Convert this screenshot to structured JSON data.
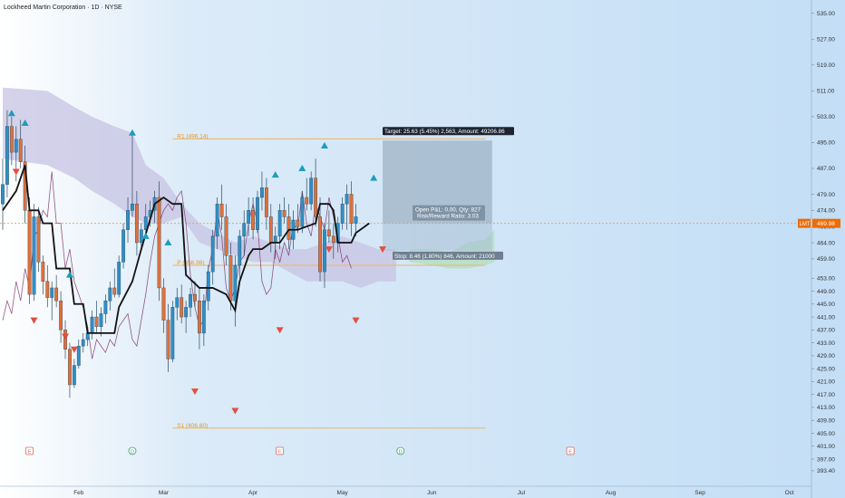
{
  "header": {
    "title": "Lockheed Martin Corporation · 1D · NYSE"
  },
  "chart_data": {
    "type": "candlestick",
    "symbol": "LMT",
    "ylim": [
      390,
      538
    ],
    "y_ticks": [
      "393.40",
      "397.00",
      "401.00",
      "405.00",
      "409.00",
      "413.00",
      "417.00",
      "421.00",
      "425.00",
      "429.00",
      "433.00",
      "437.00",
      "441.00",
      "445.00",
      "449.00",
      "453.00",
      "459.00",
      "464.00",
      "469.00",
      "474.00",
      "479.00",
      "487.00",
      "495.00",
      "503.00",
      "511.00",
      "519.00",
      "527.00",
      "535.00"
    ],
    "x_ticks": [
      {
        "label": "Feb",
        "i": 17
      },
      {
        "label": "Mar",
        "i": 36
      },
      {
        "label": "Apr",
        "i": 56
      },
      {
        "label": "May",
        "i": 76
      },
      {
        "label": "Jun",
        "i": 96
      },
      {
        "label": "Jul",
        "i": 116
      },
      {
        "label": "Aug",
        "i": 136
      },
      {
        "label": "Sep",
        "i": 156
      },
      {
        "label": "Oct",
        "i": 176
      }
    ],
    "candles": [
      {
        "o": 476,
        "h": 490,
        "l": 468,
        "c": 482
      },
      {
        "o": 482,
        "h": 505,
        "l": 478,
        "c": 500
      },
      {
        "o": 500,
        "h": 503,
        "l": 488,
        "c": 492
      },
      {
        "o": 492,
        "h": 500,
        "l": 483,
        "c": 496
      },
      {
        "o": 496,
        "h": 502,
        "l": 487,
        "c": 489
      },
      {
        "o": 489,
        "h": 494,
        "l": 470,
        "c": 474
      },
      {
        "o": 474,
        "h": 478,
        "l": 445,
        "c": 448
      },
      {
        "o": 448,
        "h": 476,
        "l": 446,
        "c": 472
      },
      {
        "o": 472,
        "h": 475,
        "l": 455,
        "c": 458
      },
      {
        "o": 458,
        "h": 460,
        "l": 448,
        "c": 452
      },
      {
        "o": 452,
        "h": 457,
        "l": 444,
        "c": 447
      },
      {
        "o": 447,
        "h": 452,
        "l": 440,
        "c": 450
      },
      {
        "o": 450,
        "h": 454,
        "l": 444,
        "c": 446
      },
      {
        "o": 446,
        "h": 449,
        "l": 433,
        "c": 437
      },
      {
        "o": 437,
        "h": 440,
        "l": 428,
        "c": 431
      },
      {
        "o": 431,
        "h": 433,
        "l": 416,
        "c": 420
      },
      {
        "o": 420,
        "h": 428,
        "l": 419,
        "c": 426
      },
      {
        "o": 426,
        "h": 434,
        "l": 425,
        "c": 432
      },
      {
        "o": 432,
        "h": 436,
        "l": 430,
        "c": 434
      },
      {
        "o": 434,
        "h": 438,
        "l": 432,
        "c": 436
      },
      {
        "o": 436,
        "h": 443,
        "l": 434,
        "c": 441
      },
      {
        "o": 441,
        "h": 446,
        "l": 436,
        "c": 438
      },
      {
        "o": 438,
        "h": 444,
        "l": 435,
        "c": 442
      },
      {
        "o": 442,
        "h": 448,
        "l": 439,
        "c": 446
      },
      {
        "o": 446,
        "h": 452,
        "l": 443,
        "c": 450
      },
      {
        "o": 450,
        "h": 456,
        "l": 447,
        "c": 448
      },
      {
        "o": 448,
        "h": 460,
        "l": 447,
        "c": 458
      },
      {
        "o": 458,
        "h": 470,
        "l": 456,
        "c": 468
      },
      {
        "o": 468,
        "h": 478,
        "l": 464,
        "c": 474
      },
      {
        "o": 474,
        "h": 498,
        "l": 472,
        "c": 476
      },
      {
        "o": 476,
        "h": 480,
        "l": 460,
        "c": 464
      },
      {
        "o": 464,
        "h": 470,
        "l": 462,
        "c": 468
      },
      {
        "o": 468,
        "h": 476,
        "l": 466,
        "c": 472
      },
      {
        "o": 472,
        "h": 477,
        "l": 469,
        "c": 474
      },
      {
        "o": 474,
        "h": 480,
        "l": 470,
        "c": 478
      },
      {
        "o": 478,
        "h": 483,
        "l": 446,
        "c": 450
      },
      {
        "o": 450,
        "h": 453,
        "l": 436,
        "c": 440
      },
      {
        "o": 440,
        "h": 445,
        "l": 424,
        "c": 428
      },
      {
        "o": 428,
        "h": 446,
        "l": 427,
        "c": 444
      },
      {
        "o": 444,
        "h": 450,
        "l": 440,
        "c": 447
      },
      {
        "o": 447,
        "h": 451,
        "l": 439,
        "c": 441
      },
      {
        "o": 441,
        "h": 446,
        "l": 436,
        "c": 444
      },
      {
        "o": 444,
        "h": 450,
        "l": 441,
        "c": 448
      },
      {
        "o": 448,
        "h": 452,
        "l": 444,
        "c": 446
      },
      {
        "o": 446,
        "h": 450,
        "l": 431,
        "c": 436
      },
      {
        "o": 436,
        "h": 448,
        "l": 432,
        "c": 446
      },
      {
        "o": 446,
        "h": 457,
        "l": 443,
        "c": 455
      },
      {
        "o": 455,
        "h": 468,
        "l": 451,
        "c": 466
      },
      {
        "o": 466,
        "h": 478,
        "l": 462,
        "c": 476
      },
      {
        "o": 476,
        "h": 482,
        "l": 468,
        "c": 472
      },
      {
        "o": 472,
        "h": 476,
        "l": 457,
        "c": 460
      },
      {
        "o": 460,
        "h": 464,
        "l": 443,
        "c": 446
      },
      {
        "o": 446,
        "h": 460,
        "l": 438,
        "c": 457
      },
      {
        "o": 457,
        "h": 468,
        "l": 453,
        "c": 466
      },
      {
        "o": 466,
        "h": 474,
        "l": 460,
        "c": 470
      },
      {
        "o": 470,
        "h": 478,
        "l": 466,
        "c": 474
      },
      {
        "o": 474,
        "h": 478,
        "l": 465,
        "c": 468
      },
      {
        "o": 468,
        "h": 480,
        "l": 467,
        "c": 478
      },
      {
        "o": 478,
        "h": 486,
        "l": 474,
        "c": 481
      },
      {
        "o": 481,
        "h": 484,
        "l": 468,
        "c": 472
      },
      {
        "o": 472,
        "h": 476,
        "l": 461,
        "c": 464
      },
      {
        "o": 464,
        "h": 469,
        "l": 459,
        "c": 466
      },
      {
        "o": 466,
        "h": 476,
        "l": 462,
        "c": 474
      },
      {
        "o": 474,
        "h": 478,
        "l": 470,
        "c": 472
      },
      {
        "o": 472,
        "h": 476,
        "l": 462,
        "c": 465
      },
      {
        "o": 465,
        "h": 474,
        "l": 462,
        "c": 471
      },
      {
        "o": 471,
        "h": 476,
        "l": 467,
        "c": 469
      },
      {
        "o": 469,
        "h": 480,
        "l": 467,
        "c": 478
      },
      {
        "o": 478,
        "h": 484,
        "l": 474,
        "c": 476
      },
      {
        "o": 476,
        "h": 486,
        "l": 474,
        "c": 484
      },
      {
        "o": 484,
        "h": 490,
        "l": 469,
        "c": 472
      },
      {
        "o": 472,
        "h": 478,
        "l": 452,
        "c": 455
      },
      {
        "o": 455,
        "h": 470,
        "l": 450,
        "c": 468
      },
      {
        "o": 468,
        "h": 474,
        "l": 464,
        "c": 466
      },
      {
        "o": 466,
        "h": 470,
        "l": 459,
        "c": 464
      },
      {
        "o": 464,
        "h": 472,
        "l": 461,
        "c": 470
      },
      {
        "o": 470,
        "h": 478,
        "l": 468,
        "c": 476
      },
      {
        "o": 476,
        "h": 482,
        "l": 468,
        "c": 479
      },
      {
        "o": 479,
        "h": 483,
        "l": 466,
        "c": 470
      },
      {
        "o": 470,
        "h": 476,
        "l": 466,
        "c": 472
      }
    ],
    "baseline_series": [
      {
        "i": 0,
        "v": 474
      },
      {
        "i": 3,
        "v": 480
      },
      {
        "i": 4,
        "v": 484
      },
      {
        "i": 5,
        "v": 488
      },
      {
        "i": 6,
        "v": 474
      },
      {
        "i": 8,
        "v": 474
      },
      {
        "i": 9,
        "v": 470
      },
      {
        "i": 11,
        "v": 470
      },
      {
        "i": 12,
        "v": 456
      },
      {
        "i": 15,
        "v": 456
      },
      {
        "i": 16,
        "v": 445
      },
      {
        "i": 18,
        "v": 445
      },
      {
        "i": 19,
        "v": 436
      },
      {
        "i": 25,
        "v": 436
      },
      {
        "i": 26,
        "v": 444
      },
      {
        "i": 29,
        "v": 452
      },
      {
        "i": 31,
        "v": 462
      },
      {
        "i": 34,
        "v": 476
      },
      {
        "i": 36,
        "v": 478
      },
      {
        "i": 38,
        "v": 476
      },
      {
        "i": 40,
        "v": 476
      },
      {
        "i": 41,
        "v": 454
      },
      {
        "i": 44,
        "v": 450
      },
      {
        "i": 47,
        "v": 450
      },
      {
        "i": 50,
        "v": 448
      },
      {
        "i": 52,
        "v": 443
      },
      {
        "i": 53,
        "v": 452
      },
      {
        "i": 55,
        "v": 460
      },
      {
        "i": 56,
        "v": 462
      },
      {
        "i": 58,
        "v": 462
      },
      {
        "i": 60,
        "v": 464
      },
      {
        "i": 62,
        "v": 464
      },
      {
        "i": 64,
        "v": 468
      },
      {
        "i": 66,
        "v": 468
      },
      {
        "i": 70,
        "v": 470
      },
      {
        "i": 71,
        "v": 476
      },
      {
        "i": 73,
        "v": 476
      },
      {
        "i": 74,
        "v": 474
      },
      {
        "i": 75,
        "v": 464
      },
      {
        "i": 78,
        "v": 464
      },
      {
        "i": 79,
        "v": 467
      },
      {
        "i": 80,
        "v": 468
      },
      {
        "i": 82,
        "v": 470
      }
    ],
    "lagging_series": [
      {
        "i": 0,
        "v": 440
      },
      {
        "i": 1,
        "v": 446
      },
      {
        "i": 2,
        "v": 442
      },
      {
        "i": 3,
        "v": 452
      },
      {
        "i": 4,
        "v": 446
      },
      {
        "i": 5,
        "v": 456
      },
      {
        "i": 6,
        "v": 450
      },
      {
        "i": 7,
        "v": 466
      },
      {
        "i": 8,
        "v": 468
      },
      {
        "i": 9,
        "v": 474
      },
      {
        "i": 10,
        "v": 472
      },
      {
        "i": 11,
        "v": 486
      },
      {
        "i": 12,
        "v": 470
      },
      {
        "i": 13,
        "v": 470
      },
      {
        "i": 14,
        "v": 456
      },
      {
        "i": 15,
        "v": 462
      },
      {
        "i": 16,
        "v": 452
      },
      {
        "i": 17,
        "v": 448
      },
      {
        "i": 18,
        "v": 444
      },
      {
        "i": 19,
        "v": 438
      },
      {
        "i": 20,
        "v": 428
      },
      {
        "i": 21,
        "v": 434
      },
      {
        "i": 22,
        "v": 432
      },
      {
        "i": 23,
        "v": 430
      },
      {
        "i": 24,
        "v": 434
      },
      {
        "i": 25,
        "v": 432
      },
      {
        "i": 26,
        "v": 438
      },
      {
        "i": 27,
        "v": 440
      },
      {
        "i": 28,
        "v": 442
      },
      {
        "i": 29,
        "v": 434
      },
      {
        "i": 30,
        "v": 432
      },
      {
        "i": 31,
        "v": 440
      },
      {
        "i": 32,
        "v": 448
      },
      {
        "i": 33,
        "v": 458
      },
      {
        "i": 34,
        "v": 466
      },
      {
        "i": 35,
        "v": 470
      },
      {
        "i": 36,
        "v": 474
      },
      {
        "i": 37,
        "v": 476
      },
      {
        "i": 38,
        "v": 474
      },
      {
        "i": 39,
        "v": 478
      },
      {
        "i": 40,
        "v": 480
      },
      {
        "i": 41,
        "v": 470
      },
      {
        "i": 42,
        "v": 454
      },
      {
        "i": 43,
        "v": 444
      },
      {
        "i": 44,
        "v": 438
      },
      {
        "i": 45,
        "v": 440
      },
      {
        "i": 46,
        "v": 456
      },
      {
        "i": 47,
        "v": 462
      },
      {
        "i": 48,
        "v": 474
      },
      {
        "i": 49,
        "v": 466
      },
      {
        "i": 50,
        "v": 450
      },
      {
        "i": 51,
        "v": 446
      },
      {
        "i": 52,
        "v": 450
      },
      {
        "i": 53,
        "v": 458
      },
      {
        "i": 54,
        "v": 460
      },
      {
        "i": 55,
        "v": 470
      },
      {
        "i": 56,
        "v": 476
      },
      {
        "i": 57,
        "v": 470
      },
      {
        "i": 58,
        "v": 452
      },
      {
        "i": 59,
        "v": 448
      },
      {
        "i": 60,
        "v": 450
      },
      {
        "i": 61,
        "v": 462
      },
      {
        "i": 62,
        "v": 458
      },
      {
        "i": 63,
        "v": 464
      },
      {
        "i": 64,
        "v": 460
      },
      {
        "i": 65,
        "v": 470
      },
      {
        "i": 66,
        "v": 468
      },
      {
        "i": 67,
        "v": 480
      },
      {
        "i": 68,
        "v": 470
      },
      {
        "i": 69,
        "v": 466
      },
      {
        "i": 70,
        "v": 476
      },
      {
        "i": 71,
        "v": 472
      },
      {
        "i": 72,
        "v": 468
      },
      {
        "i": 73,
        "v": 478
      },
      {
        "i": 74,
        "v": 472
      },
      {
        "i": 75,
        "v": 466
      },
      {
        "i": 76,
        "v": 458
      },
      {
        "i": 77,
        "v": 460
      },
      {
        "i": 78,
        "v": 456
      }
    ],
    "cloud": [
      {
        "i": 0,
        "a": 512,
        "b": 490
      },
      {
        "i": 10,
        "a": 511,
        "b": 488
      },
      {
        "i": 16,
        "a": 506,
        "b": 484
      },
      {
        "i": 20,
        "a": 503,
        "b": 480
      },
      {
        "i": 25,
        "a": 500,
        "b": 476
      },
      {
        "i": 29,
        "a": 498,
        "b": 472
      },
      {
        "i": 32,
        "a": 488,
        "b": 470
      },
      {
        "i": 36,
        "a": 484,
        "b": 470
      },
      {
        "i": 40,
        "a": 476,
        "b": 472
      },
      {
        "i": 44,
        "a": 470,
        "b": 464
      },
      {
        "i": 48,
        "a": 467,
        "b": 462
      },
      {
        "i": 52,
        "a": 464,
        "b": 460
      },
      {
        "i": 56,
        "a": 466,
        "b": 458
      },
      {
        "i": 60,
        "a": 464,
        "b": 458
      },
      {
        "i": 64,
        "a": 462,
        "b": 455
      },
      {
        "i": 68,
        "a": 462,
        "b": 452
      },
      {
        "i": 72,
        "a": 464,
        "b": 452
      },
      {
        "i": 76,
        "a": 466,
        "b": 452
      },
      {
        "i": 80,
        "a": 464,
        "b": 450
      },
      {
        "i": 84,
        "a": 462,
        "b": 452
      },
      {
        "i": 88,
        "a": 462,
        "b": 452
      }
    ],
    "future_cloud": [
      {
        "i": 91,
        "a": 462,
        "b": 458
      },
      {
        "i": 96,
        "a": 462,
        "b": 457
      },
      {
        "i": 100,
        "a": 461,
        "b": 456
      },
      {
        "i": 104,
        "a": 464,
        "b": 456
      },
      {
        "i": 108,
        "a": 465,
        "b": 457
      },
      {
        "i": 110,
        "a": 468,
        "b": 458
      }
    ],
    "levels": [
      {
        "name": "R1",
        "label": "R1 (496.14)",
        "v": 496.14
      },
      {
        "name": "P",
        "label": "P (456.98)",
        "v": 456.98
      },
      {
        "name": "S1",
        "label": "S1 (406.60)",
        "v": 406.6
      }
    ],
    "position": {
      "entry": 469.98,
      "target": 495.61,
      "stop": 461.52,
      "target_label": "Target: 25.63 (5.45%) 2,563, Amount: 49206.86",
      "stop_label": "Stop: 8.46 (1.80%) 846, Amount: 21000",
      "pnl_label": "Open P&L: 0.00, Qty: 827",
      "ratio_label": "Risk/Reward Ratio: 3.03"
    },
    "signals_up": [
      {
        "i": 2,
        "v": 504
      },
      {
        "i": 5,
        "v": 501
      },
      {
        "i": 15,
        "v": 454
      },
      {
        "i": 29,
        "v": 498
      },
      {
        "i": 32,
        "v": 466
      },
      {
        "i": 37,
        "v": 464
      },
      {
        "i": 61,
        "v": 485
      },
      {
        "i": 67,
        "v": 487
      },
      {
        "i": 72,
        "v": 494
      },
      {
        "i": 83,
        "v": 484
      }
    ],
    "signals_down": [
      {
        "i": 3,
        "v": 486
      },
      {
        "i": 7,
        "v": 440
      },
      {
        "i": 14,
        "v": 435
      },
      {
        "i": 16,
        "v": 431
      },
      {
        "i": 43,
        "v": 418
      },
      {
        "i": 52,
        "v": 412
      },
      {
        "i": 62,
        "v": 437
      },
      {
        "i": 73,
        "v": 462
      },
      {
        "i": 79,
        "v": 440
      },
      {
        "i": 85,
        "v": 462
      }
    ],
    "events": [
      {
        "label": "E",
        "i": 6
      },
      {
        "label": "D",
        "i": 29
      },
      {
        "label": "E",
        "i": 62
      },
      {
        "label": "D",
        "i": 89
      },
      {
        "label": "E",
        "i": 127
      }
    ],
    "price_tags": [
      {
        "label": "LMT",
        "value": "469.98",
        "v": 469.98,
        "color": "#ef6c00"
      }
    ]
  },
  "colors": {
    "background_left": "#ffffff",
    "background_right": "#c9e2f8",
    "candle_up": "#2f8fc8",
    "candle_down": "#e0703a",
    "baseline": "#111111",
    "lagging": "#7a2f6a",
    "cloud": "#c7c3e3",
    "future_cloud": "#b7dfc7",
    "level_line": "#f2b35a",
    "signal_up": "#1e9db8",
    "signal_down": "#e05040",
    "price_tag": "#ef6c00"
  }
}
